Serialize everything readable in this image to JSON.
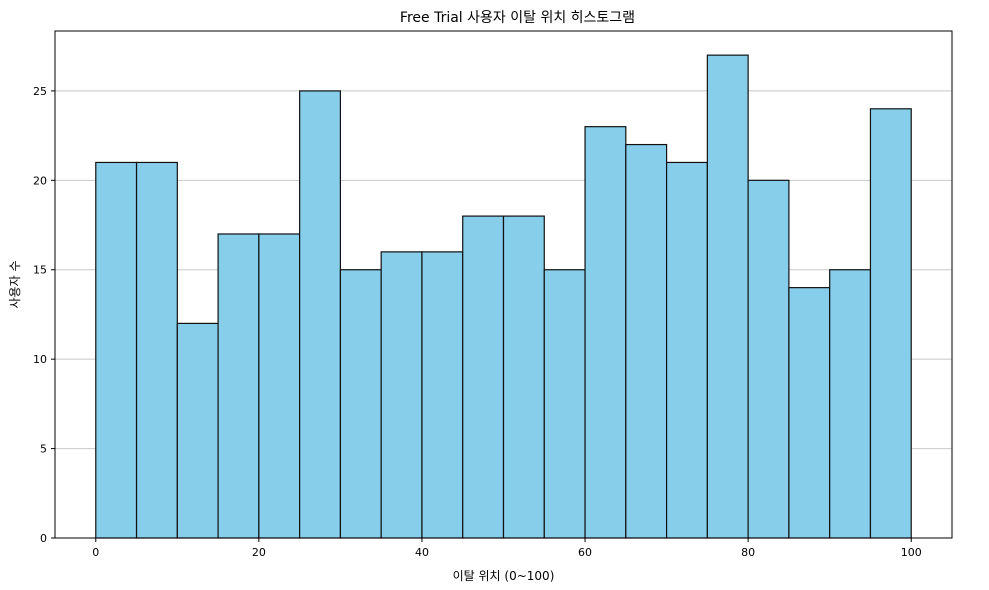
{
  "chart_data": {
    "type": "bar",
    "title": "Free Trial 사용자 이탈 위치 히스토그램",
    "xlabel": "이탈 위치 (0~100)",
    "ylabel": "사용자 수",
    "bins": [
      [
        0,
        5
      ],
      [
        5,
        10
      ],
      [
        10,
        15
      ],
      [
        15,
        20
      ],
      [
        20,
        25
      ],
      [
        25,
        30
      ],
      [
        30,
        35
      ],
      [
        35,
        40
      ],
      [
        40,
        45
      ],
      [
        45,
        50
      ],
      [
        50,
        55
      ],
      [
        55,
        60
      ],
      [
        60,
        65
      ],
      [
        65,
        70
      ],
      [
        70,
        75
      ],
      [
        75,
        80
      ],
      [
        80,
        85
      ],
      [
        85,
        90
      ],
      [
        90,
        95
      ],
      [
        95,
        100
      ]
    ],
    "values": [
      21,
      21,
      12,
      17,
      17,
      25,
      15,
      16,
      16,
      18,
      18,
      15,
      23,
      22,
      21,
      27,
      20,
      14,
      15,
      24
    ],
    "xlim": [
      -5,
      105
    ],
    "ylim": [
      0,
      28.35
    ],
    "xticks": [
      0,
      20,
      40,
      60,
      80,
      100
    ],
    "yticks": [
      0,
      5,
      10,
      15,
      20,
      25
    ],
    "grid": "y",
    "colors": {
      "bar_fill": "#87CEEB",
      "bar_edge": "#111111"
    }
  }
}
